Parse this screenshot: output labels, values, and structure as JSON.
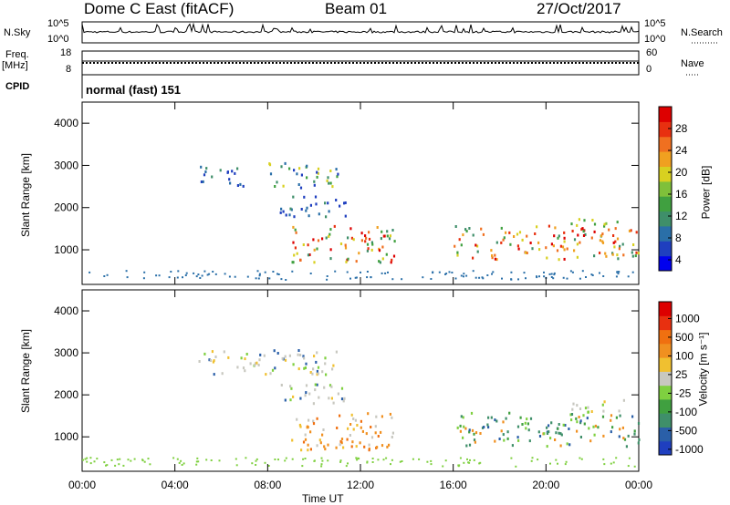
{
  "header": {
    "station": "Dome C East (fitACF)",
    "beam": "Beam 01",
    "date": "27/Oct/2017"
  },
  "strips": {
    "nsky_label": "N.Sky",
    "nsky_ticks": [
      "10^5",
      "10^0"
    ],
    "nsearch_label": "N.Search",
    "nsearch_ticks": [
      "10^5",
      "10^0"
    ],
    "freq_label_1": "Freq.",
    "freq_label_2": "[MHz]",
    "freq_ticks": [
      "18",
      "8"
    ],
    "nave_label": "Nave",
    "nave_ticks": [
      "60",
      "0"
    ],
    "cpid_label": "CPID",
    "cpid_value": "normal (fast) 151"
  },
  "chart_data": [
    {
      "type": "heatmap",
      "name": "power-panel",
      "ylabel": "Slant Range [km]",
      "yticks": [
        "4000",
        "3000",
        "2000",
        "1000"
      ],
      "ylim": [
        180,
        4500
      ],
      "xlim": [
        0,
        24
      ],
      "colorbar_label": "Power [dB]",
      "colorbar_ticks": [
        "28",
        "24",
        "20",
        "16",
        "12",
        "8",
        "4"
      ],
      "colorbar_colors": [
        "#0000ee",
        "#1f3fbf",
        "#2a6fa8",
        "#3f8f6a",
        "#40a040",
        "#7fc03a",
        "#d8d020",
        "#f0a020",
        "#f07020",
        "#e83010",
        "#dd0000"
      ],
      "scatter_regions": [
        {
          "t0": 5.0,
          "t1": 7.0,
          "r0": 2500,
          "r1": 3000,
          "dominant": "low"
        },
        {
          "t0": 8.0,
          "t1": 11.0,
          "r0": 2500,
          "r1": 3100,
          "dominant": "mixed"
        },
        {
          "t0": 8.5,
          "t1": 11.5,
          "r0": 1800,
          "r1": 2300,
          "dominant": "low"
        },
        {
          "t0": 9.0,
          "t1": 13.5,
          "r0": 700,
          "r1": 1600,
          "dominant": "high"
        },
        {
          "t0": 16.0,
          "t1": 24.0,
          "r0": 800,
          "r1": 1600,
          "dominant": "high"
        },
        {
          "t0": 21.0,
          "t1": 23.5,
          "r0": 1600,
          "r1": 1800,
          "dominant": "mid"
        }
      ]
    },
    {
      "type": "heatmap",
      "name": "velocity-panel",
      "ylabel": "Slant Range [km]",
      "yticks": [
        "4000",
        "3000",
        "2000",
        "1000"
      ],
      "ylim": [
        180,
        4500
      ],
      "xlim": [
        0,
        24
      ],
      "colorbar_label": "Velocity [m s⁻¹]",
      "colorbar_ticks": [
        "1000",
        "500",
        "100",
        "25",
        "-25",
        "-100",
        "-500",
        "-1000"
      ],
      "colorbar_colors": [
        "#1f3fbf",
        "#2a5fa8",
        "#3f8f6a",
        "#40a040",
        "#7fd040",
        "#c8c8c0",
        "#f0c030",
        "#f09020",
        "#f07010",
        "#e83010",
        "#dd0000"
      ],
      "scatter_regions": [
        {
          "t0": 5.0,
          "t1": 11.0,
          "r0": 2500,
          "r1": 3100,
          "dominant": "gray"
        },
        {
          "t0": 8.5,
          "t1": 11.5,
          "r0": 1800,
          "r1": 2300,
          "dominant": "gray"
        },
        {
          "t0": 9.0,
          "t1": 13.5,
          "r0": 700,
          "r1": 1600,
          "dominant": "orange"
        },
        {
          "t0": 16.0,
          "t1": 24.0,
          "r0": 800,
          "r1": 1600,
          "dominant": "green"
        },
        {
          "t0": 21.0,
          "t1": 23.5,
          "r0": 1600,
          "r1": 1900,
          "dominant": "gray"
        }
      ]
    }
  ],
  "xaxis": {
    "label": "Time UT",
    "ticks": [
      "00:00",
      "04:00",
      "08:00",
      "12:00",
      "16:00",
      "20:00",
      "00:00"
    ]
  }
}
